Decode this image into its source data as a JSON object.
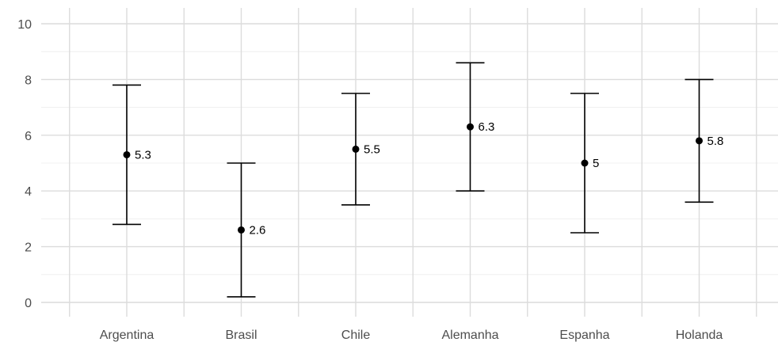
{
  "chart_data": {
    "type": "scatter",
    "categories": [
      "Argentina",
      "Brasil",
      "Chile",
      "Alemanha",
      "Espanha",
      "Holanda"
    ],
    "series": [
      {
        "values": [
          5.3,
          2.6,
          5.5,
          6.3,
          5,
          5.8
        ],
        "lower": [
          2.8,
          0.2,
          3.5,
          4.0,
          2.5,
          3.6
        ],
        "upper": [
          7.8,
          5.0,
          7.5,
          8.6,
          7.5,
          8.0
        ],
        "labels": [
          "5.3",
          "2.6",
          "5.5",
          "6.3",
          "5",
          "5.8"
        ]
      }
    ],
    "ylim": [
      0,
      10
    ],
    "yticks": [
      0,
      2,
      4,
      6,
      8,
      10
    ],
    "ytick_labels": [
      "0",
      "2",
      "4",
      "6",
      "8",
      "10"
    ],
    "grid": true,
    "legend": "none",
    "colors": {
      "marks": "#000000",
      "grid": "#dcdcdc",
      "text": "#4d4d4d"
    }
  }
}
